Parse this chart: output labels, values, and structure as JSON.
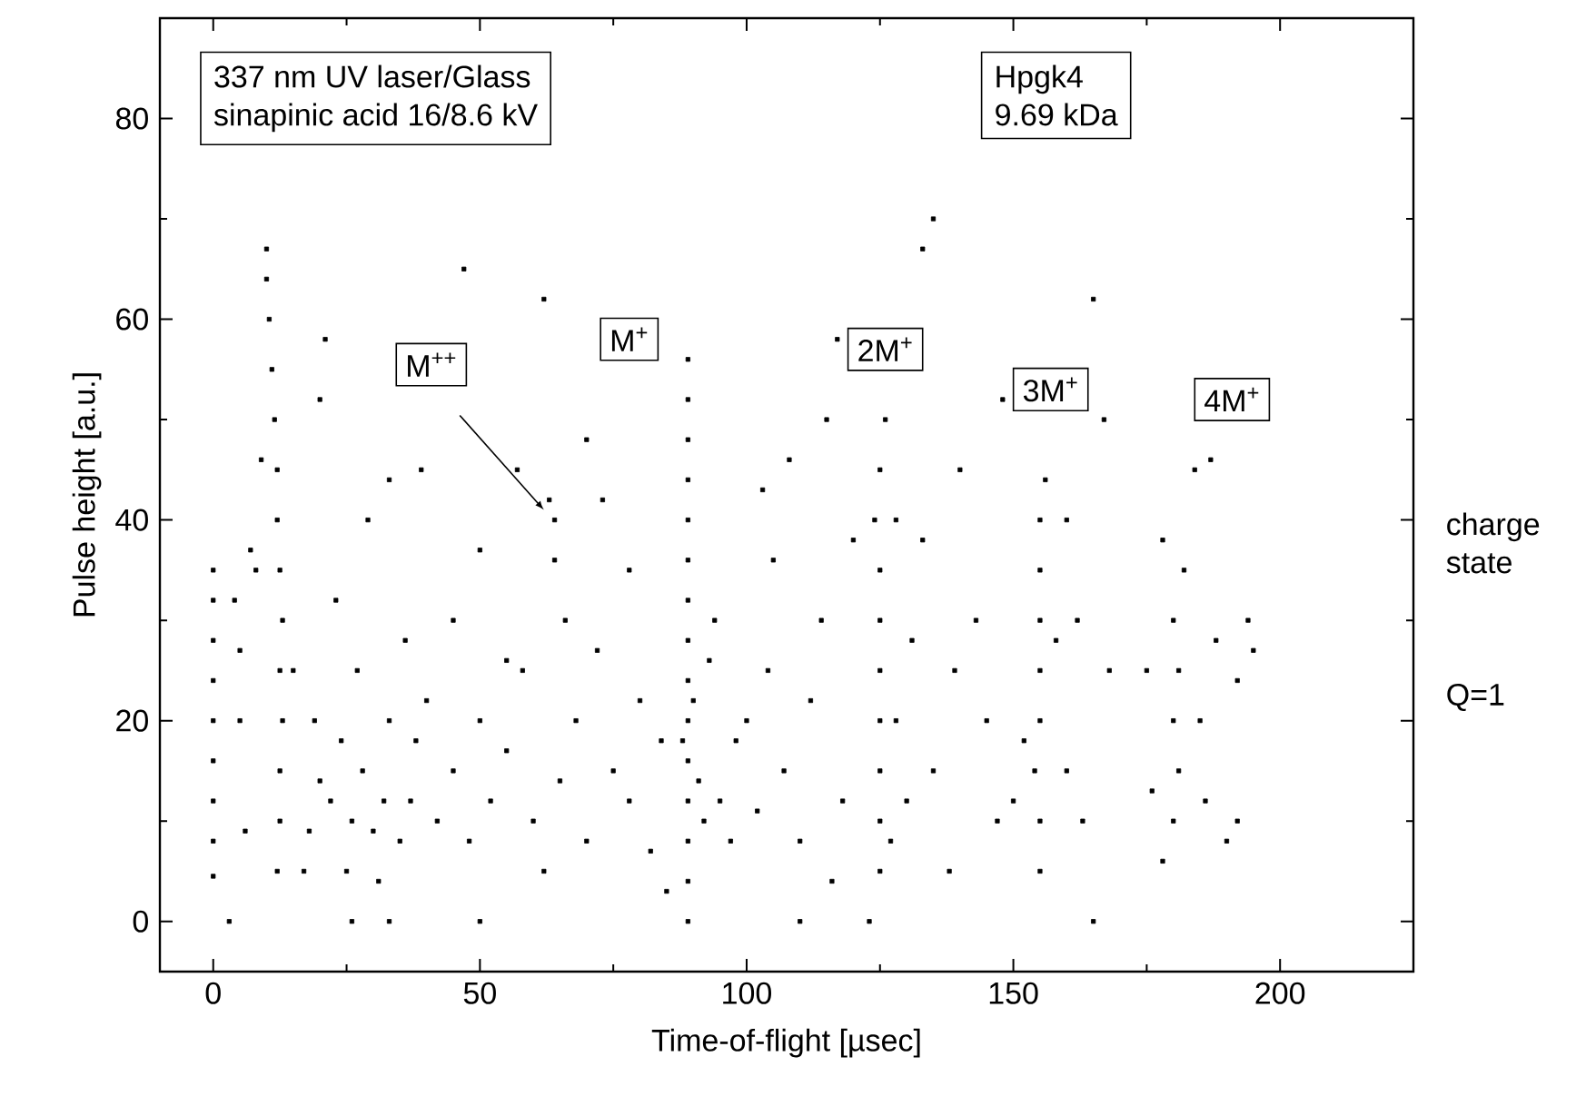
{
  "chart_data": {
    "type": "scatter",
    "xlabel": "Time-of-flight [µsec]",
    "ylabel": "Pulse height [a.u.]",
    "xlim": [
      -10,
      225
    ],
    "ylim": [
      -5,
      90
    ],
    "xticks": [
      0,
      50,
      100,
      150,
      200
    ],
    "yticks": [
      0,
      20,
      40,
      60,
      80
    ],
    "marker": "square",
    "annotations": [
      {
        "text": "M$^{++}$",
        "x": 62,
        "y": 41
      },
      {
        "text": "M$^{+}$",
        "x": 78,
        "y": 58
      },
      {
        "text": "2M$^{+}$",
        "x": 126,
        "y": 57
      },
      {
        "text": "3M$^{+}$",
        "x": 157,
        "y": 53
      },
      {
        "text": "4M$^{+}$",
        "x": 191,
        "y": 52
      },
      "337 nm UV laser/Glass",
      "sinapinic acid 16/8.6 kV",
      "Hpgk4",
      "9.69 kDa",
      "charge state",
      "Q=1"
    ],
    "series": [
      {
        "color": "#000000",
        "x": [
          0,
          0,
          0,
          0,
          0,
          0,
          0,
          0,
          0,
          12,
          12.5,
          12.5,
          13,
          12.5,
          13,
          12.5,
          12,
          12,
          11.5,
          11,
          10.5,
          10,
          10,
          3,
          5,
          5,
          7,
          4,
          8,
          9,
          6,
          17,
          18,
          20,
          22,
          19,
          24,
          26,
          28,
          30,
          32,
          33,
          35,
          27,
          25,
          31,
          37,
          38,
          40,
          36,
          23,
          29,
          33,
          39,
          20,
          21,
          26,
          33,
          15,
          42,
          45,
          48,
          50,
          52,
          55,
          58,
          60,
          62,
          65,
          68,
          70,
          72,
          75,
          78,
          80,
          82,
          84,
          45,
          50,
          55,
          57,
          47,
          62,
          64,
          64,
          63,
          66,
          73,
          50,
          85,
          78,
          70,
          89,
          89,
          89,
          89,
          89,
          89,
          89,
          89,
          89,
          89,
          89,
          89,
          89,
          89,
          89,
          88,
          90,
          91,
          92,
          93,
          95,
          97,
          94,
          98,
          100,
          102,
          104,
          105,
          107,
          108,
          110,
          112,
          114,
          115,
          118,
          120,
          117,
          103,
          110,
          116,
          125,
          125,
          125,
          125,
          125,
          125,
          125,
          124,
          125,
          126,
          123,
          128,
          130,
          131,
          127,
          133,
          135,
          138,
          139,
          135,
          133,
          128,
          140,
          143,
          145,
          147,
          148,
          155,
          155,
          154,
          155,
          155,
          155,
          155,
          155,
          156,
          152,
          158,
          160,
          162,
          165,
          163,
          160,
          150,
          168,
          167,
          165,
          178,
          180,
          181,
          180,
          181,
          180,
          182,
          178,
          185,
          186,
          188,
          190,
          192,
          194,
          175,
          184,
          187,
          192,
          195,
          176
        ],
        "values": [
          4.5,
          8,
          12,
          16,
          20,
          24,
          28,
          32,
          35,
          5,
          10,
          15,
          20,
          25,
          30,
          35,
          40,
          45,
          50,
          55,
          60,
          64,
          67,
          0,
          27,
          20,
          37,
          32,
          35,
          46,
          9,
          5,
          9,
          14,
          12,
          20,
          18,
          10,
          15,
          9,
          12,
          20,
          8,
          25,
          5,
          4,
          12,
          18,
          22,
          28,
          32,
          40,
          44,
          45,
          52,
          58,
          0,
          0,
          25,
          10,
          15,
          8,
          20,
          12,
          17,
          25,
          10,
          5,
          14,
          20,
          8,
          27,
          15,
          12,
          22,
          7,
          18,
          30,
          37,
          26,
          45,
          65,
          62,
          40,
          36,
          42,
          30,
          42,
          0,
          3,
          35,
          48,
          0,
          4,
          8,
          12,
          16,
          20,
          24,
          28,
          32,
          36,
          40,
          44,
          48,
          52,
          56,
          18,
          22,
          14,
          10,
          26,
          12,
          8,
          30,
          18,
          20,
          11,
          25,
          36,
          15,
          46,
          8,
          22,
          30,
          50,
          12,
          38,
          58,
          43,
          0,
          4,
          5,
          10,
          15,
          20,
          25,
          30,
          35,
          40,
          45,
          50,
          0,
          20,
          12,
          28,
          8,
          38,
          15,
          5,
          25,
          70,
          67,
          40,
          45,
          30,
          20,
          10,
          52,
          5,
          10,
          15,
          20,
          25,
          30,
          35,
          40,
          44,
          18,
          28,
          15,
          30,
          0,
          10,
          40,
          12,
          25,
          50,
          62,
          6,
          10,
          15,
          20,
          25,
          30,
          35,
          38,
          20,
          12,
          28,
          8,
          24,
          30,
          25,
          45,
          46,
          10,
          27,
          13
        ]
      }
    ]
  }
}
